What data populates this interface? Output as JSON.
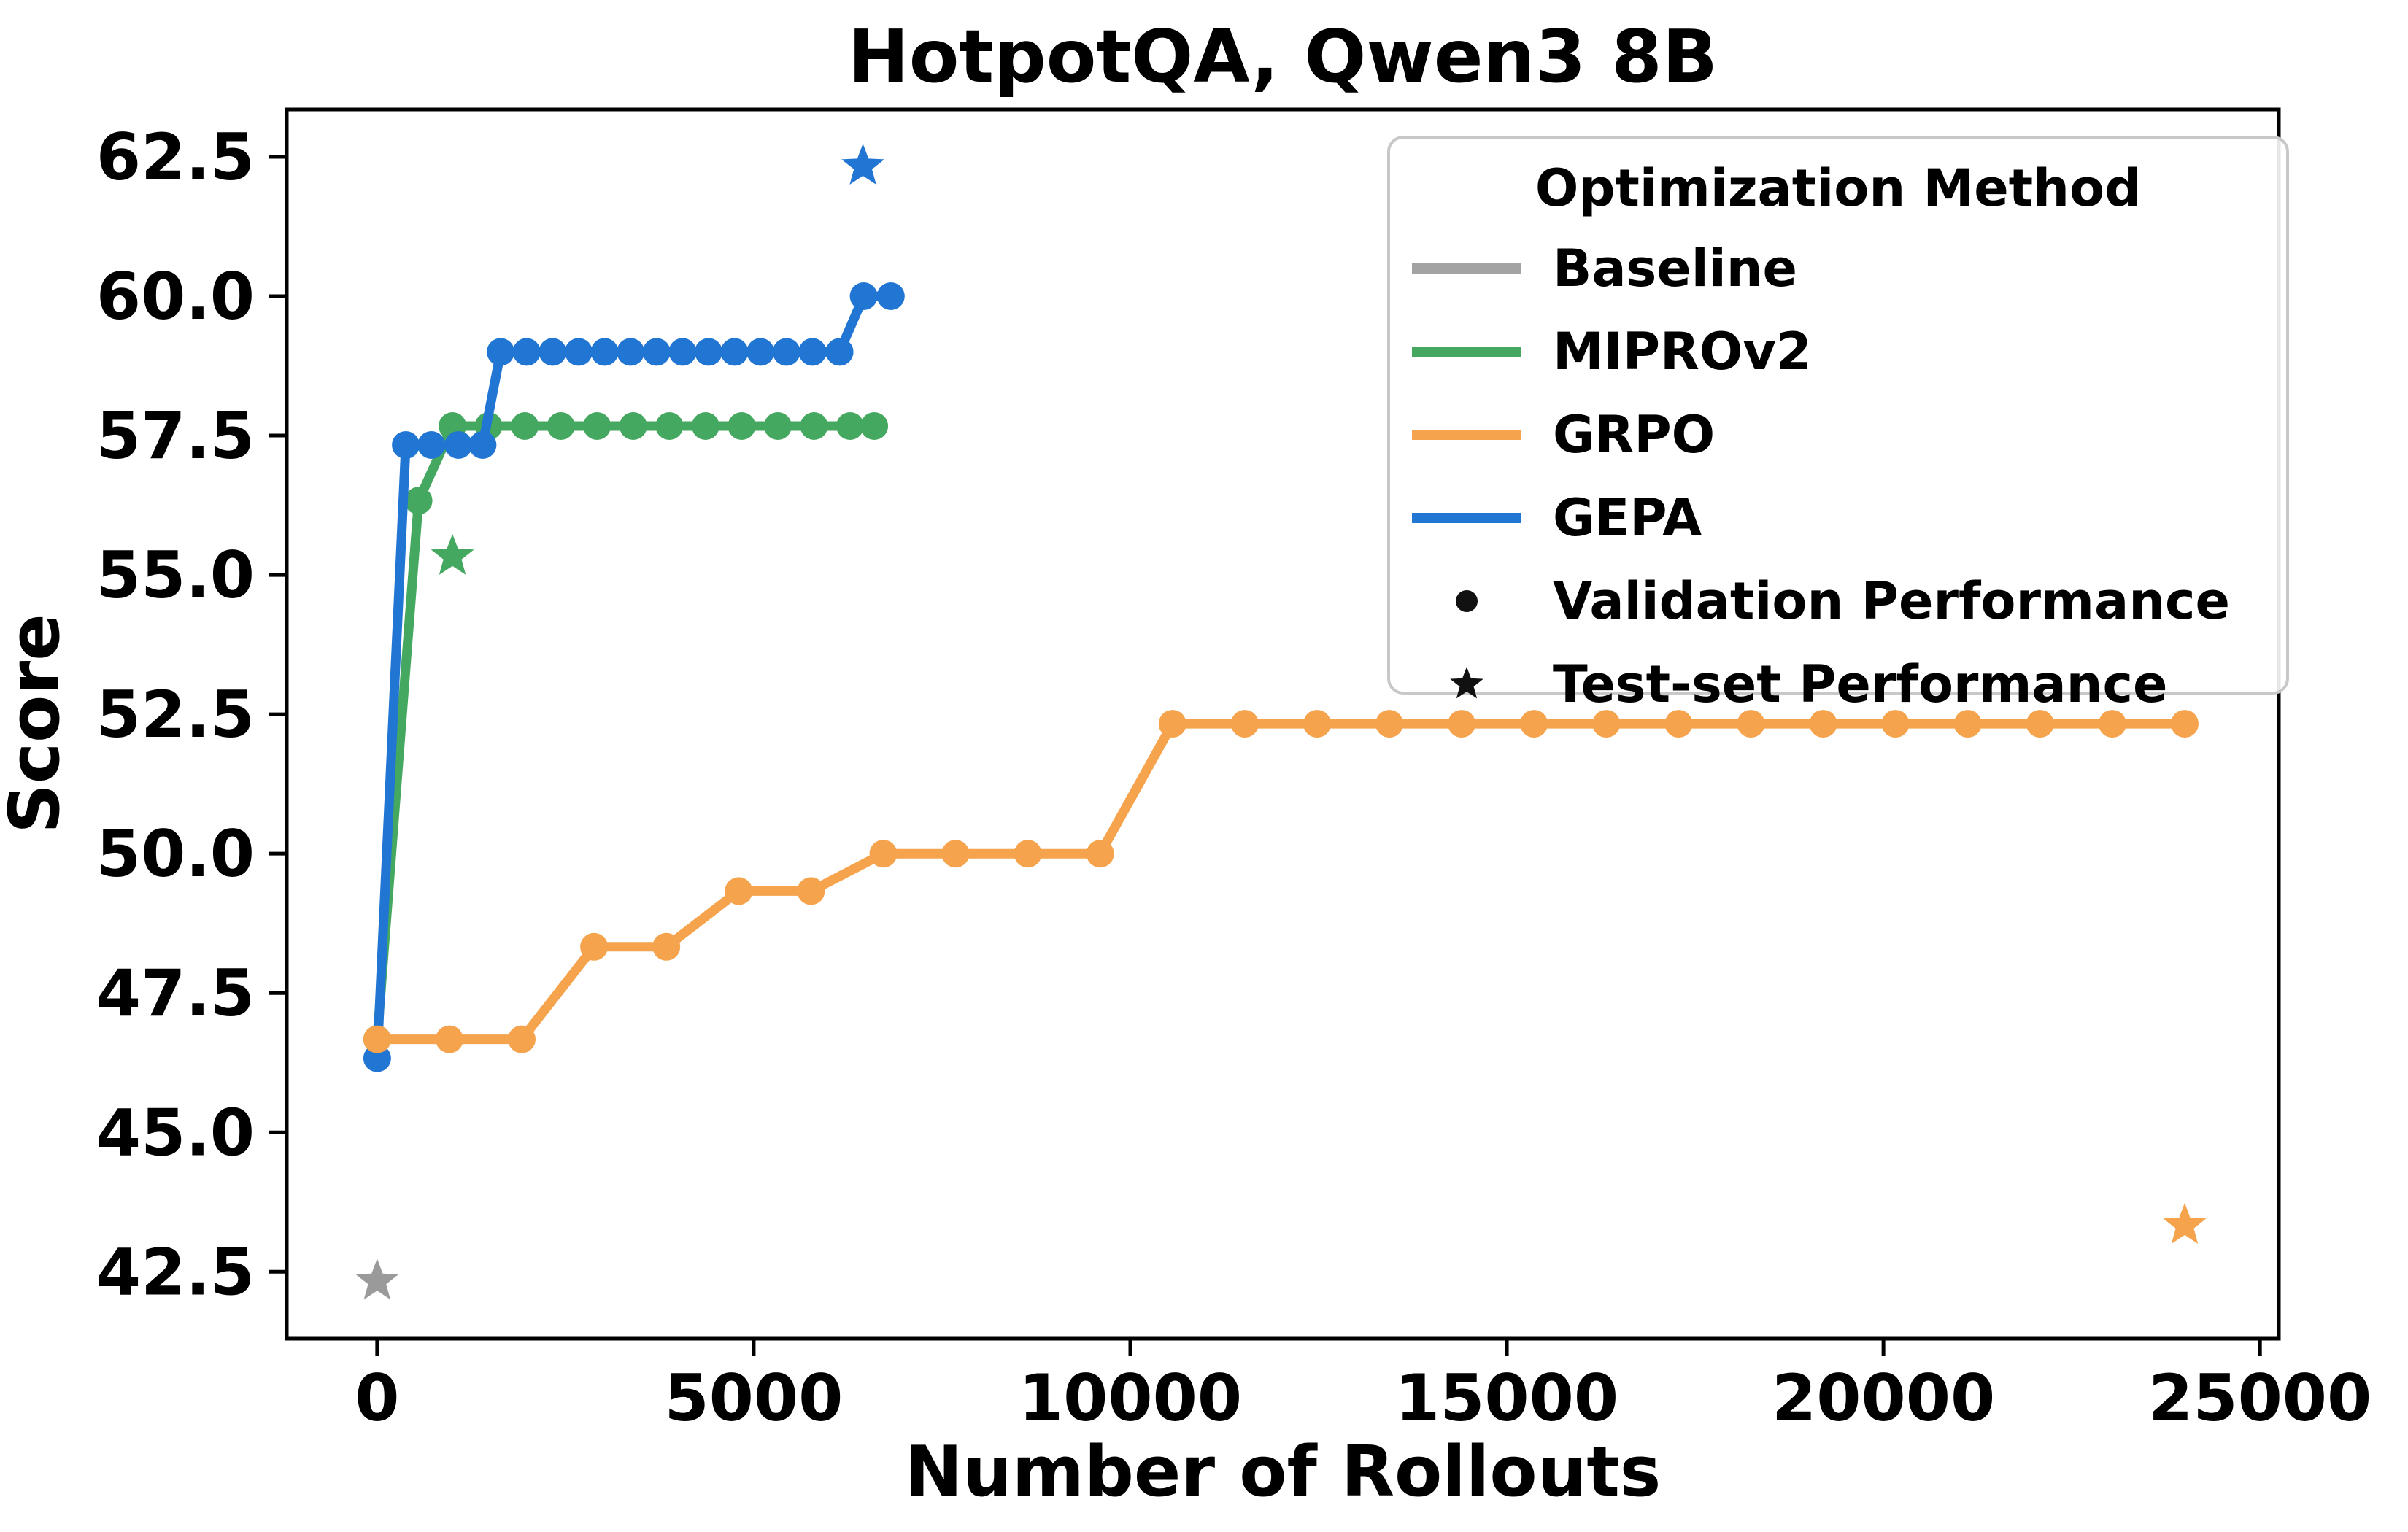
{
  "chart_data": {
    "type": "line",
    "title": "HotpotQA, Qwen3 8B",
    "xlabel": "Number of Rollouts",
    "ylabel": "Score",
    "xlim": [
      -1200,
      25250
    ],
    "ylim": [
      41.3,
      63.35
    ],
    "grid": false,
    "x_ticks": {
      "values": [
        0,
        5000,
        10000,
        15000,
        20000,
        25000
      ],
      "labels": [
        "0",
        "5000",
        "10000",
        "15000",
        "20000",
        "25000"
      ]
    },
    "y_ticks": {
      "values": [
        42.5,
        45.0,
        47.5,
        50.0,
        52.5,
        55.0,
        57.5,
        60.0,
        62.5
      ],
      "labels": [
        "42.5",
        "45.0",
        "47.5",
        "50.0",
        "52.5",
        "55.0",
        "57.5",
        "60.0",
        "62.5"
      ]
    },
    "series": [
      {
        "name": "MIPROv2",
        "color": "#45a860",
        "marker": "dot",
        "x": [
          0,
          550,
          1000,
          1480,
          1960,
          2440,
          2920,
          3400,
          3880,
          4360,
          4840,
          5320,
          5800,
          6280,
          6600
        ],
        "y": [
          46.67,
          56.33,
          57.67,
          57.67,
          57.67,
          57.67,
          57.67,
          57.67,
          57.67,
          57.67,
          57.67,
          57.67,
          57.67,
          57.67,
          57.67
        ]
      },
      {
        "name": "GEPA",
        "color": "#2276d3",
        "marker": "dot",
        "x": [
          0,
          380,
          720,
          1080,
          1400,
          1640,
          1985,
          2330,
          2675,
          3020,
          3365,
          3710,
          4055,
          4400,
          4745,
          5090,
          5435,
          5780,
          6140,
          6460,
          6820
        ],
        "y": [
          46.33,
          57.33,
          57.33,
          57.33,
          57.33,
          59.0,
          59.0,
          59.0,
          59.0,
          59.0,
          59.0,
          59.0,
          59.0,
          59.0,
          59.0,
          59.0,
          59.0,
          59.0,
          59.0,
          60.0,
          60.0
        ]
      },
      {
        "name": "GRPO",
        "color": "#f5a34c",
        "marker": "dot",
        "x": [
          0,
          960,
          1920,
          2880,
          3840,
          4800,
          5760,
          6720,
          7680,
          8640,
          9600,
          10560,
          11520,
          12480,
          13440,
          14400,
          15360,
          16320,
          17280,
          18240,
          19200,
          20160,
          21120,
          22080,
          23040,
          24000
        ],
        "y": [
          46.67,
          46.67,
          46.67,
          48.33,
          48.33,
          49.33,
          49.33,
          50.0,
          50.0,
          50.0,
          50.0,
          52.33,
          52.33,
          52.33,
          52.33,
          52.33,
          52.33,
          52.33,
          52.33,
          52.33,
          52.33,
          52.33,
          52.33,
          52.33,
          52.33,
          52.33
        ]
      }
    ],
    "test_points": [
      {
        "name": "Baseline",
        "x": 0,
        "y": 42.33,
        "color": "#9a9a9a"
      },
      {
        "name": "MIPROv2",
        "x": 1000,
        "y": 55.33,
        "color": "#45a860"
      },
      {
        "name": "GEPA",
        "x": 6450,
        "y": 62.33,
        "color": "#2276d3"
      },
      {
        "name": "GRPO",
        "x": 24000,
        "y": 43.33,
        "color": "#f5a34c"
      }
    ],
    "legend": {
      "title": "Optimization Method",
      "position": "upper right",
      "entries": [
        {
          "label": "Baseline",
          "swatch": "line",
          "color": "#a3a3a3"
        },
        {
          "label": "MIPROv2",
          "swatch": "line",
          "color": "#45a860"
        },
        {
          "label": "GRPO",
          "swatch": "line",
          "color": "#f5a34c"
        },
        {
          "label": "GEPA",
          "swatch": "line",
          "color": "#2276d3"
        },
        {
          "label": "Validation Performance",
          "swatch": "dot",
          "color": "#111111"
        },
        {
          "label": "Test-set Performance",
          "swatch": "star",
          "color": "#111111"
        }
      ]
    }
  }
}
